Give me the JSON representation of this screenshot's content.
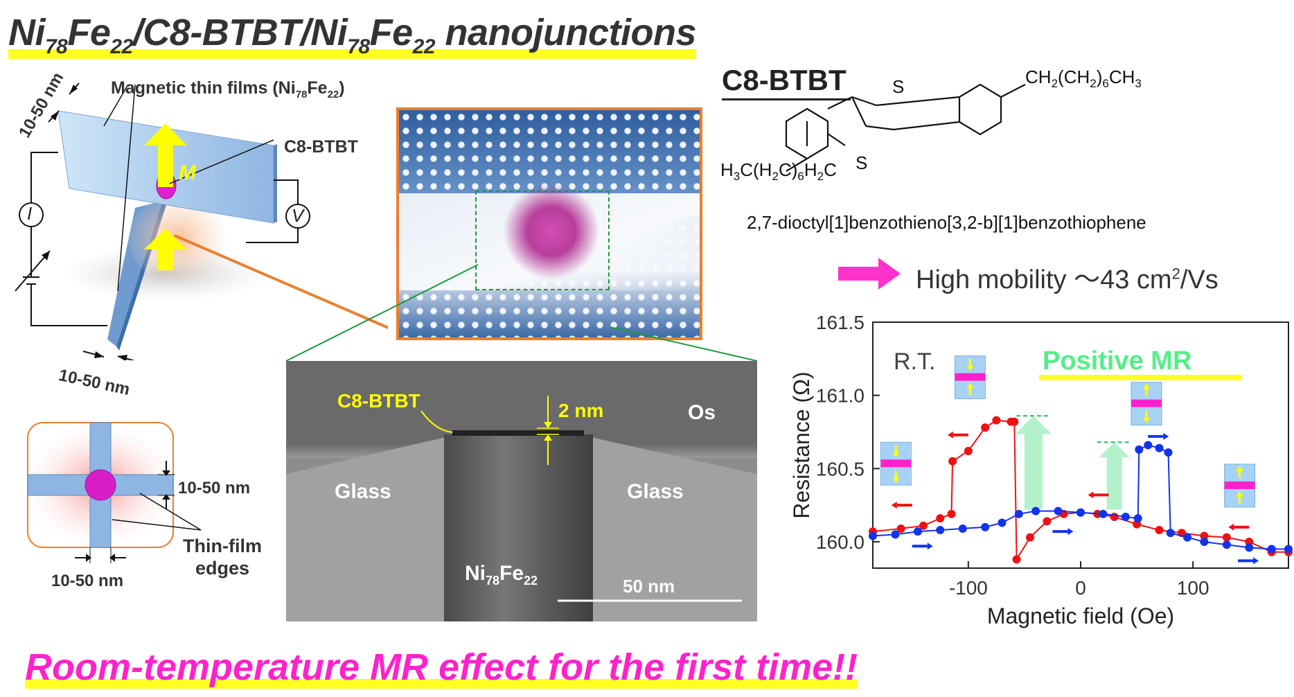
{
  "title": {
    "parts": [
      {
        "t": "Ni"
      },
      {
        "s": "78"
      },
      {
        "t": "Fe"
      },
      {
        "s": "22"
      },
      {
        "t": "/C8-BTBT/Ni"
      },
      {
        "s": "78"
      },
      {
        "t": "Fe"
      },
      {
        "s": "22"
      },
      {
        "t": " nanojunctions"
      }
    ]
  },
  "device": {
    "thickness_top": "10-50 nm",
    "films_label": "Magnetic thin films (Ni",
    "films_sub1": "78",
    "films_mid": "Fe",
    "films_sub2": "22",
    "films_end": ")",
    "c8btbt": "C8-BTBT",
    "m_label": "M",
    "current": "I",
    "voltage": "V",
    "thickness_bottom": "10-50 nm"
  },
  "cross": {
    "width_right": "10-50 nm",
    "width_bottom": "10-50 nm",
    "edges_line1": "Thin-film",
    "edges_line2": "edges"
  },
  "tem": {
    "c8btbt": "C8-BTBT",
    "gap": "2 nm",
    "os": "Os",
    "glass_left": "Glass",
    "glass_right": "Glass",
    "ni": "Ni",
    "ni_sub": "78",
    "fe": "Fe",
    "fe_sub": "22",
    "scale": "50 nm"
  },
  "molecule": {
    "heading": "C8-BTBT",
    "right_chain": "CH2(CH2)6CH3",
    "left_chain": "H3C(H2C)6H2C",
    "s_top": "S",
    "s_bottom": "S",
    "name": "2,7-dioctyl[1]benzothieno[3,2-b][1]benzothiophene",
    "mobility_text": "High mobility ～43 cm",
    "mobility_sup": "2",
    "mobility_unit": "/Vs"
  },
  "bottom_text": "Room-temperature MR effect for the first time!!",
  "colors": {
    "highlight": "#ffff22",
    "magenta": "#ff22cc",
    "arrow_yellow": "#ffff00",
    "film_blue": "#8fb6e2",
    "orange": "#e88030"
  },
  "chart_data": {
    "type": "scatter",
    "title": "",
    "xlabel": "Magnetic field (Oe)",
    "ylabel": "Resistance (Ω)",
    "xlim": [
      -185,
      185
    ],
    "ylim": [
      159.82,
      161.5
    ],
    "xticks": [
      -100,
      0,
      100
    ],
    "yticks": [
      160.0,
      160.5,
      161.0,
      161.5
    ],
    "xtick_labels": [
      "-100",
      "0",
      "100"
    ],
    "ytick_labels": [
      "160.0",
      "160.5",
      "161.0",
      "161.5"
    ],
    "annotations": {
      "rt": "R.T.",
      "positive": "Positive MR"
    },
    "series": [
      {
        "name": "sweep down (red)",
        "color": "#ee1111",
        "x": [
          -185,
          -160,
          -140,
          -125,
          -115,
          -114,
          -100,
          -85,
          -75,
          -62,
          -59,
          -57,
          -45,
          -30,
          -15,
          0,
          15,
          30,
          50,
          70,
          90,
          110,
          130,
          150,
          170,
          185
        ],
        "y": [
          160.07,
          160.09,
          160.11,
          160.16,
          160.19,
          160.55,
          160.62,
          160.78,
          160.83,
          160.82,
          160.82,
          159.88,
          160.03,
          160.14,
          160.19,
          160.2,
          160.19,
          160.17,
          160.12,
          160.08,
          160.06,
          160.04,
          160.03,
          160.0,
          159.93,
          159.93
        ]
      },
      {
        "name": "sweep up (blue)",
        "color": "#1133ee",
        "x": [
          -185,
          -165,
          -145,
          -125,
          -105,
          -85,
          -70,
          -55,
          -40,
          -20,
          0,
          20,
          40,
          51,
          52,
          60,
          70,
          78,
          80,
          95,
          110,
          130,
          150,
          170,
          185
        ],
        "y": [
          160.04,
          160.05,
          160.07,
          160.08,
          160.09,
          160.1,
          160.13,
          160.19,
          160.21,
          160.21,
          160.2,
          160.19,
          160.17,
          160.16,
          160.63,
          160.66,
          160.64,
          160.61,
          160.06,
          160.03,
          160.0,
          159.98,
          159.96,
          159.95,
          159.95
        ]
      }
    ]
  }
}
